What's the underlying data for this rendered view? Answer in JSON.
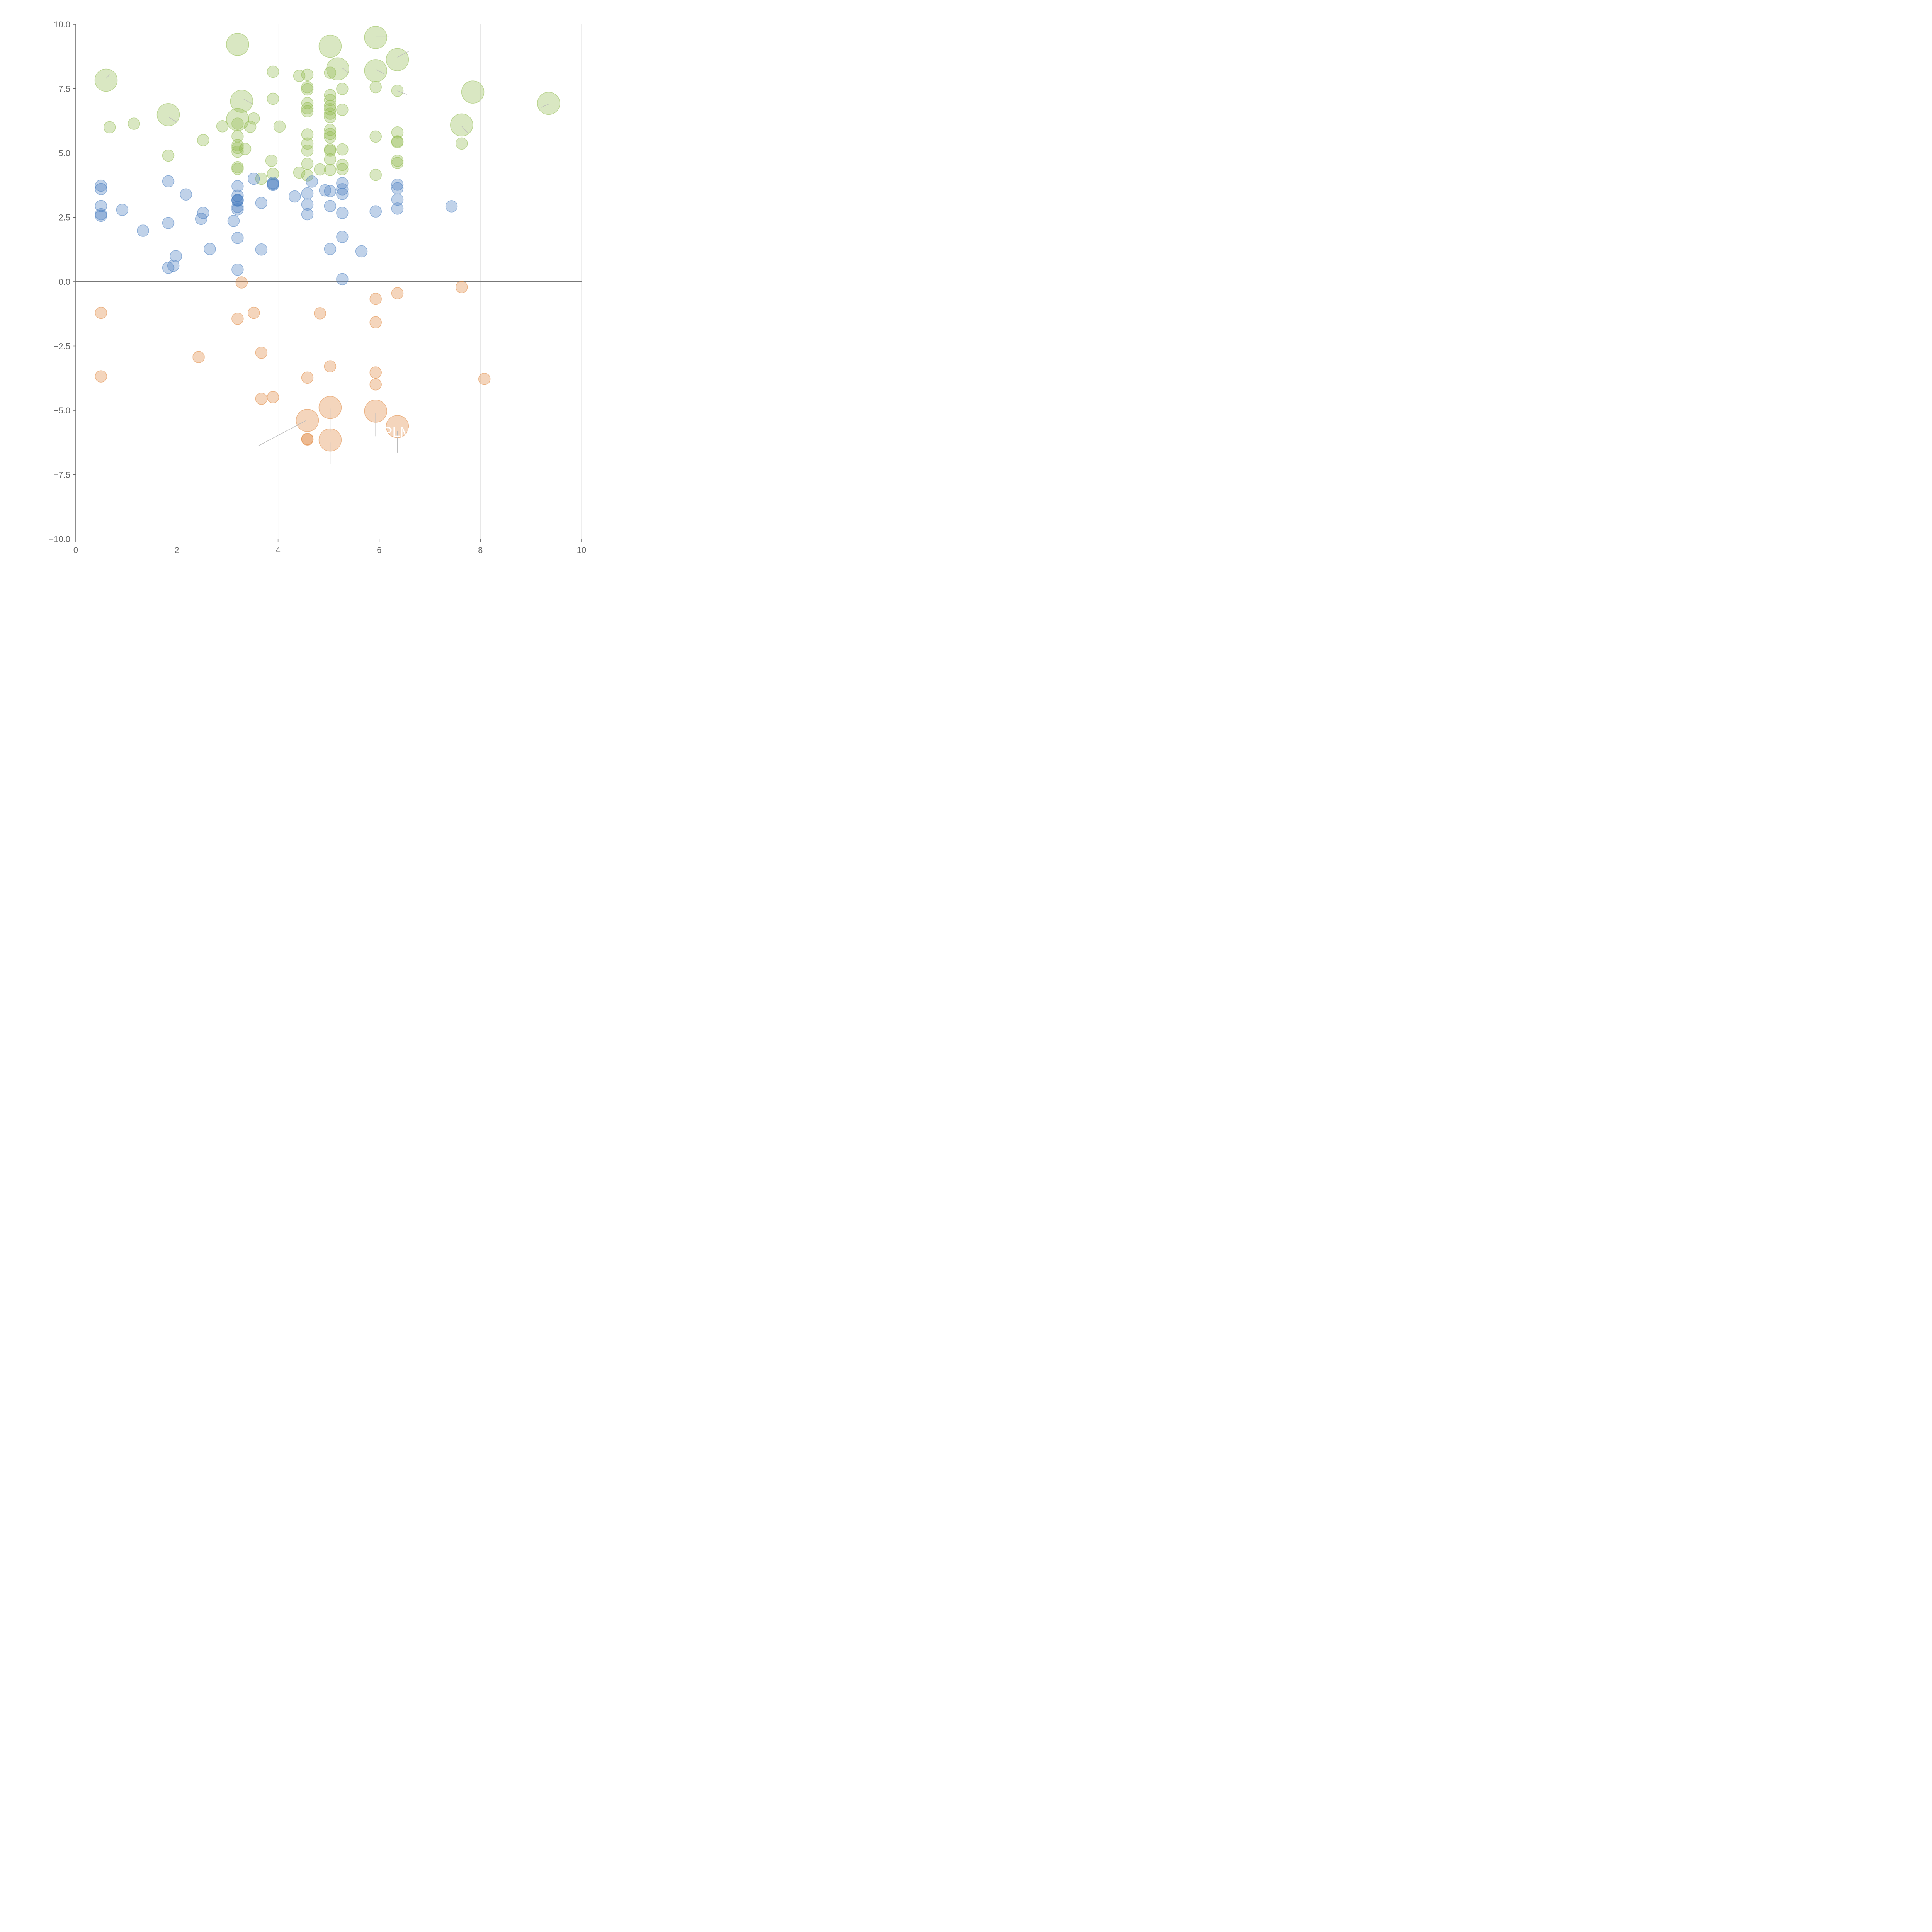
{
  "colors": {
    "blue": "#4a7fc1",
    "green": "#91bb4f",
    "orange": "#e0883f",
    "axis": "#666666",
    "grid": "#dddddd",
    "zero_line": "#777777"
  },
  "chart_data": {
    "type": "scatter",
    "variant": "bubble",
    "title": "",
    "xlabel": "",
    "ylabel": "",
    "xlim": [
      0,
      10
    ],
    "ylim": [
      -10,
      10
    ],
    "x_ticks": [
      0,
      2,
      4,
      6,
      8,
      10
    ],
    "x_tick_labels": [
      "0",
      "2",
      "4",
      "6",
      "8",
      "10"
    ],
    "y_ticks": [
      -10,
      -7.5,
      -5,
      -2.5,
      0,
      2.5,
      5,
      7.5,
      10
    ],
    "y_tick_labels": [
      "−10.0",
      "−7.5",
      "−5.0",
      "−2.5",
      "0.0",
      "2.5",
      "5.0",
      "7.5",
      "10.0"
    ],
    "grid": "vertical",
    "reference_line_y": 0,
    "series": [
      {
        "color": "green",
        "points": [
          {
            "x": 0.6,
            "y": 7.83,
            "s": "large"
          },
          {
            "x": 0.67,
            "y": 6.0
          },
          {
            "x": 1.15,
            "y": 6.14
          },
          {
            "x": 1.83,
            "y": 6.49,
            "s": "large"
          },
          {
            "x": 1.83,
            "y": 4.9
          },
          {
            "x": 2.52,
            "y": 5.5
          },
          {
            "x": 2.9,
            "y": 6.04
          },
          {
            "x": 3.2,
            "y": 9.22,
            "s": "large"
          },
          {
            "x": 3.2,
            "y": 6.3,
            "s": "large"
          },
          {
            "x": 3.2,
            "y": 6.14
          },
          {
            "x": 3.2,
            "y": 5.65
          },
          {
            "x": 3.2,
            "y": 5.3
          },
          {
            "x": 3.2,
            "y": 5.2
          },
          {
            "x": 3.2,
            "y": 5.05
          },
          {
            "x": 3.2,
            "y": 4.45
          },
          {
            "x": 3.2,
            "y": 4.38
          },
          {
            "x": 3.28,
            "y": 7.01,
            "s": "large"
          },
          {
            "x": 3.35,
            "y": 5.16
          },
          {
            "x": 3.45,
            "y": 6.02
          },
          {
            "x": 3.52,
            "y": 6.34
          },
          {
            "x": 3.67,
            "y": 4.0
          },
          {
            "x": 3.87,
            "y": 4.7
          },
          {
            "x": 3.9,
            "y": 8.16
          },
          {
            "x": 3.9,
            "y": 7.11
          },
          {
            "x": 3.9,
            "y": 4.19
          },
          {
            "x": 4.03,
            "y": 6.03
          },
          {
            "x": 4.42,
            "y": 8.0
          },
          {
            "x": 4.42,
            "y": 4.24
          },
          {
            "x": 4.58,
            "y": 8.04
          },
          {
            "x": 4.58,
            "y": 7.56
          },
          {
            "x": 4.58,
            "y": 7.47
          },
          {
            "x": 4.58,
            "y": 6.94
          },
          {
            "x": 4.58,
            "y": 6.74
          },
          {
            "x": 4.58,
            "y": 6.62
          },
          {
            "x": 4.58,
            "y": 5.72
          },
          {
            "x": 4.58,
            "y": 5.37
          },
          {
            "x": 4.58,
            "y": 5.09
          },
          {
            "x": 4.58,
            "y": 4.58
          },
          {
            "x": 4.58,
            "y": 4.13
          },
          {
            "x": 4.83,
            "y": 4.36
          },
          {
            "x": 5.03,
            "y": 9.15,
            "s": "large"
          },
          {
            "x": 5.03,
            "y": 8.12
          },
          {
            "x": 5.03,
            "y": 7.25
          },
          {
            "x": 5.03,
            "y": 7.06
          },
          {
            "x": 5.03,
            "y": 6.84
          },
          {
            "x": 5.03,
            "y": 6.7
          },
          {
            "x": 5.03,
            "y": 6.53
          },
          {
            "x": 5.03,
            "y": 6.39
          },
          {
            "x": 5.03,
            "y": 5.9
          },
          {
            "x": 5.03,
            "y": 5.74
          },
          {
            "x": 5.03,
            "y": 5.61
          },
          {
            "x": 5.03,
            "y": 5.14
          },
          {
            "x": 5.03,
            "y": 5.09
          },
          {
            "x": 5.03,
            "y": 4.75
          },
          {
            "x": 5.03,
            "y": 4.34
          },
          {
            "x": 5.18,
            "y": 8.27,
            "s": "large"
          },
          {
            "x": 5.27,
            "y": 7.49
          },
          {
            "x": 5.27,
            "y": 6.68
          },
          {
            "x": 5.27,
            "y": 5.14
          },
          {
            "x": 5.27,
            "y": 4.54
          },
          {
            "x": 5.27,
            "y": 4.37
          },
          {
            "x": 5.93,
            "y": 9.49,
            "s": "large"
          },
          {
            "x": 5.93,
            "y": 8.2,
            "s": "large"
          },
          {
            "x": 5.93,
            "y": 7.56
          },
          {
            "x": 5.93,
            "y": 5.64
          },
          {
            "x": 5.93,
            "y": 4.15
          },
          {
            "x": 6.36,
            "y": 8.63,
            "s": "large"
          },
          {
            "x": 6.36,
            "y": 7.42
          },
          {
            "x": 6.36,
            "y": 5.8
          },
          {
            "x": 6.36,
            "y": 5.45
          },
          {
            "x": 6.36,
            "y": 5.42
          },
          {
            "x": 6.36,
            "y": 4.7
          },
          {
            "x": 6.36,
            "y": 4.61
          },
          {
            "x": 7.63,
            "y": 6.09,
            "s": "large"
          },
          {
            "x": 7.63,
            "y": 5.37
          },
          {
            "x": 7.85,
            "y": 7.37,
            "s": "large"
          },
          {
            "x": 9.35,
            "y": 6.93,
            "s": "large"
          }
        ]
      },
      {
        "color": "blue",
        "points": [
          {
            "x": 0.5,
            "y": 3.73
          },
          {
            "x": 0.5,
            "y": 3.6
          },
          {
            "x": 0.5,
            "y": 2.94
          },
          {
            "x": 0.5,
            "y": 2.62
          },
          {
            "x": 0.5,
            "y": 2.56
          },
          {
            "x": 0.92,
            "y": 2.79
          },
          {
            "x": 1.33,
            "y": 1.98
          },
          {
            "x": 1.83,
            "y": 3.9
          },
          {
            "x": 1.83,
            "y": 2.28
          },
          {
            "x": 1.83,
            "y": 0.54
          },
          {
            "x": 1.93,
            "y": 0.62
          },
          {
            "x": 1.98,
            "y": 0.99
          },
          {
            "x": 2.18,
            "y": 3.39
          },
          {
            "x": 2.48,
            "y": 2.44
          },
          {
            "x": 2.52,
            "y": 2.67
          },
          {
            "x": 2.65,
            "y": 1.27
          },
          {
            "x": 3.12,
            "y": 2.36
          },
          {
            "x": 3.2,
            "y": 3.71
          },
          {
            "x": 3.2,
            "y": 3.34
          },
          {
            "x": 3.2,
            "y": 3.18
          },
          {
            "x": 3.2,
            "y": 3.17
          },
          {
            "x": 3.2,
            "y": 3.15
          },
          {
            "x": 3.2,
            "y": 2.91
          },
          {
            "x": 3.2,
            "y": 2.81
          },
          {
            "x": 3.2,
            "y": 1.7
          },
          {
            "x": 3.2,
            "y": 0.47
          },
          {
            "x": 3.52,
            "y": 4.0
          },
          {
            "x": 3.67,
            "y": 3.06
          },
          {
            "x": 3.67,
            "y": 1.25
          },
          {
            "x": 3.9,
            "y": 3.84
          },
          {
            "x": 3.9,
            "y": 3.8
          },
          {
            "x": 3.9,
            "y": 3.76
          },
          {
            "x": 4.33,
            "y": 3.31
          },
          {
            "x": 4.58,
            "y": 3.43
          },
          {
            "x": 4.58,
            "y": 3.0
          },
          {
            "x": 4.58,
            "y": 2.62
          },
          {
            "x": 4.67,
            "y": 3.89
          },
          {
            "x": 4.93,
            "y": 3.55
          },
          {
            "x": 5.03,
            "y": 3.52
          },
          {
            "x": 5.03,
            "y": 2.94
          },
          {
            "x": 5.03,
            "y": 1.27
          },
          {
            "x": 5.27,
            "y": 3.83
          },
          {
            "x": 5.27,
            "y": 3.59
          },
          {
            "x": 5.27,
            "y": 3.41
          },
          {
            "x": 5.27,
            "y": 2.67
          },
          {
            "x": 5.27,
            "y": 1.74
          },
          {
            "x": 5.27,
            "y": 0.1
          },
          {
            "x": 5.65,
            "y": 1.18
          },
          {
            "x": 5.93,
            "y": 2.73
          },
          {
            "x": 6.36,
            "y": 3.77
          },
          {
            "x": 6.36,
            "y": 3.63
          },
          {
            "x": 6.36,
            "y": 3.19
          },
          {
            "x": 6.36,
            "y": 2.84
          },
          {
            "x": 7.43,
            "y": 2.93
          }
        ]
      },
      {
        "color": "orange",
        "points": [
          {
            "x": 0.5,
            "y": -1.21
          },
          {
            "x": 0.5,
            "y": -3.68
          },
          {
            "x": 2.43,
            "y": -2.93
          },
          {
            "x": 3.2,
            "y": -1.44
          },
          {
            "x": 3.28,
            "y": -0.03
          },
          {
            "x": 3.52,
            "y": -1.21
          },
          {
            "x": 3.67,
            "y": -2.76
          },
          {
            "x": 3.67,
            "y": -4.55
          },
          {
            "x": 3.9,
            "y": -4.49
          },
          {
            "x": 4.58,
            "y": -3.73
          },
          {
            "x": 4.58,
            "y": -5.39,
            "s": "large"
          },
          {
            "x": 4.58,
            "y": -6.11
          },
          {
            "x": 4.58,
            "y": -6.13
          },
          {
            "x": 4.83,
            "y": -1.23
          },
          {
            "x": 5.03,
            "y": -3.29
          },
          {
            "x": 5.03,
            "y": -4.89,
            "s": "large"
          },
          {
            "x": 5.03,
            "y": -6.15,
            "s": "large"
          },
          {
            "x": 5.93,
            "y": -0.67
          },
          {
            "x": 5.93,
            "y": -1.58
          },
          {
            "x": 5.93,
            "y": -3.53
          },
          {
            "x": 5.93,
            "y": -3.99
          },
          {
            "x": 5.93,
            "y": -5.03,
            "s": "large"
          },
          {
            "x": 6.36,
            "y": -0.45
          },
          {
            "x": 6.36,
            "y": -5.63,
            "s": "large"
          },
          {
            "x": 7.63,
            "y": -0.21
          },
          {
            "x": 8.08,
            "y": -3.78
          }
        ]
      }
    ],
    "annotations": [
      {
        "text": "PLM",
        "x": 6.36,
        "y": -5.82
      }
    ],
    "callouts": [
      {
        "x1": 0.67,
        "y1": 8.05,
        "x2": 0.6,
        "y2": 7.9
      },
      {
        "x1": 1.85,
        "y1": 6.38,
        "x2": 2.0,
        "y2": 6.2
      },
      {
        "x1": 3.3,
        "y1": 7.12,
        "x2": 3.5,
        "y2": 6.9
      },
      {
        "x1": 5.4,
        "y1": 8.1,
        "x2": 5.27,
        "y2": 8.3
      },
      {
        "x1": 5.93,
        "y1": 8.25,
        "x2": 6.1,
        "y2": 8.07
      },
      {
        "x1": 5.93,
        "y1": 9.51,
        "x2": 6.2,
        "y2": 9.51
      },
      {
        "x1": 6.36,
        "y1": 8.72,
        "x2": 6.6,
        "y2": 8.97
      },
      {
        "x1": 6.36,
        "y1": 7.42,
        "x2": 6.55,
        "y2": 7.28
      },
      {
        "x1": 7.63,
        "y1": 6.05,
        "x2": 7.75,
        "y2": 5.78
      },
      {
        "x1": 9.35,
        "y1": 6.9,
        "x2": 9.2,
        "y2": 6.77
      },
      {
        "x1": 4.55,
        "y1": -5.4,
        "x2": 3.6,
        "y2": -6.39
      },
      {
        "x1": 5.03,
        "y1": -4.93,
        "x2": 5.03,
        "y2": -5.82
      },
      {
        "x1": 5.03,
        "y1": -6.25,
        "x2": 5.03,
        "y2": -7.1
      },
      {
        "x1": 5.93,
        "y1": -5.11,
        "x2": 5.93,
        "y2": -6.01
      },
      {
        "x1": 6.36,
        "y1": -5.81,
        "x2": 6.36,
        "y2": -6.65
      }
    ]
  }
}
